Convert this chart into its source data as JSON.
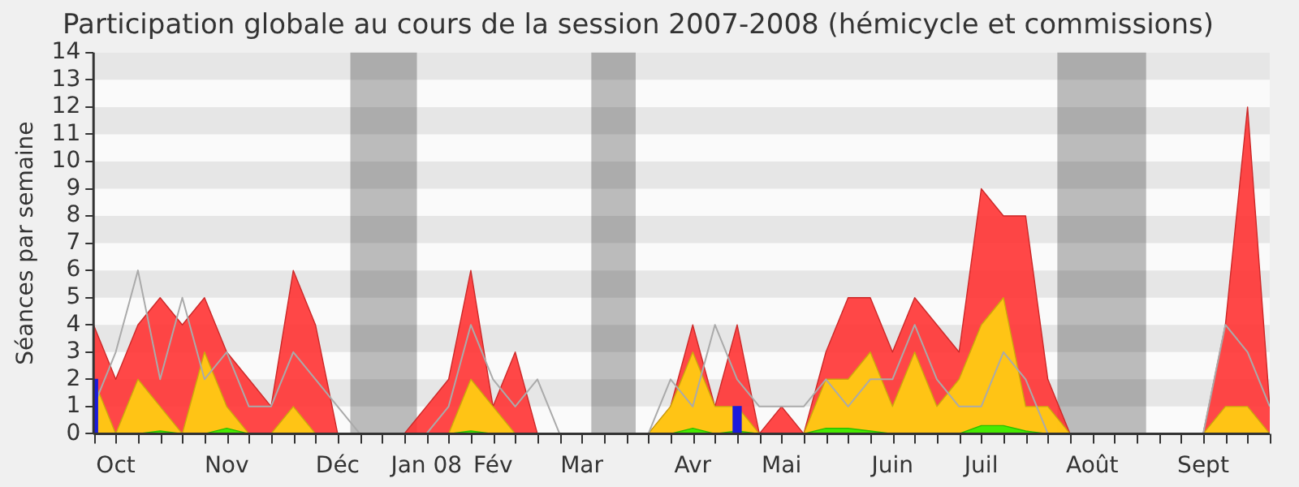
{
  "chart_data": {
    "type": "area",
    "title": "Participation globale au cours de la session 2007-2008 (hémicycle et commissions)",
    "ylabel": "Séances par semaine",
    "x": [
      "2007-10-01",
      "2007-10-08",
      "2007-10-15",
      "2007-10-22",
      "2007-10-29",
      "2007-11-05",
      "2007-11-12",
      "2007-11-19",
      "2007-11-26",
      "2007-12-03",
      "2007-12-10",
      "2007-12-17",
      "2007-12-24",
      "2007-12-31",
      "2008-01-07",
      "2008-01-14",
      "2008-01-21",
      "2008-01-28",
      "2008-02-04",
      "2008-02-11",
      "2008-02-18",
      "2008-02-25",
      "2008-03-03",
      "2008-03-10",
      "2008-03-17",
      "2008-03-24",
      "2008-03-31",
      "2008-04-07",
      "2008-04-14",
      "2008-04-21",
      "2008-04-28",
      "2008-05-05",
      "2008-05-12",
      "2008-05-19",
      "2008-05-26",
      "2008-06-02",
      "2008-06-09",
      "2008-06-16",
      "2008-06-23",
      "2008-06-30",
      "2008-07-07",
      "2008-07-14",
      "2008-07-21",
      "2008-07-28",
      "2008-08-04",
      "2008-08-11",
      "2008-08-18",
      "2008-08-25",
      "2008-09-01",
      "2008-09-08",
      "2008-09-15",
      "2008-09-22",
      "2008-09-29",
      "2008-10-06"
    ],
    "series": [
      {
        "color": "#ff3333",
        "values": [
          4,
          2,
          4,
          5,
          4,
          5,
          3,
          2,
          1,
          6,
          4,
          0,
          0,
          0,
          0,
          1,
          2,
          6,
          1,
          3,
          0,
          0,
          0,
          0,
          0,
          0,
          1,
          4,
          1,
          4,
          0,
          1,
          0,
          3,
          5,
          5,
          3,
          5,
          4,
          3,
          9,
          8,
          8,
          2,
          0,
          0,
          0,
          0,
          0,
          0,
          0,
          4,
          12,
          1
        ]
      },
      {
        "color": "#ffd20f",
        "values": [
          2,
          0,
          2,
          1,
          0,
          3,
          1,
          0,
          0,
          1,
          0,
          0,
          0,
          0,
          0,
          0,
          0,
          2,
          1,
          0,
          0,
          0,
          0,
          0,
          0,
          0,
          1,
          3,
          1,
          1,
          0,
          0,
          0,
          2,
          2,
          3,
          1,
          3,
          1,
          2,
          4,
          5,
          1,
          1,
          0,
          0,
          0,
          0,
          0,
          0,
          0,
          1,
          1,
          0
        ]
      },
      {
        "color": "#33ee00",
        "values": [
          0,
          0,
          0,
          0.1,
          0,
          0,
          0.2,
          0,
          0,
          0,
          0,
          0,
          0,
          0,
          0,
          0,
          0,
          0.1,
          0,
          0,
          0,
          0,
          0,
          0,
          0,
          0,
          0,
          0.2,
          0,
          0.1,
          0,
          0,
          0,
          0.2,
          0.2,
          0.1,
          0,
          0,
          0,
          0,
          0.3,
          0.3,
          0.1,
          0,
          0,
          0,
          0,
          0,
          0,
          0,
          0,
          0,
          0,
          0
        ]
      },
      {
        "type": "line",
        "color": "#aaaaaa",
        "values": [
          1,
          3,
          6,
          2,
          5,
          2,
          3,
          1,
          1,
          3,
          2,
          1,
          0,
          0,
          0,
          0,
          1,
          4,
          2,
          1,
          2,
          0,
          0,
          0,
          0,
          0,
          2,
          1,
          4,
          2,
          1,
          1,
          1,
          2,
          1,
          2,
          2,
          4,
          2,
          1,
          1,
          3,
          2,
          0,
          0,
          0,
          0,
          0,
          0,
          0,
          0,
          4,
          3,
          1
        ]
      },
      {
        "type": "bar",
        "color": "#1a1adb",
        "values": [
          2,
          null,
          null,
          null,
          null,
          null,
          null,
          null,
          null,
          null,
          null,
          null,
          null,
          null,
          null,
          null,
          null,
          null,
          null,
          null,
          null,
          null,
          null,
          null,
          null,
          null,
          null,
          null,
          null,
          1,
          null,
          null,
          null,
          null,
          null,
          null,
          null,
          null,
          null,
          null,
          null,
          null,
          null,
          null,
          null,
          null,
          null,
          null,
          null,
          null,
          null,
          null,
          null,
          null
        ]
      }
    ],
    "xlim": [
      "2007-10-01",
      "2008-10-06"
    ],
    "xticks": [
      {
        "value": "2007-10-01",
        "label": null
      },
      {
        "value": "2007-10-08",
        "label": "Oct"
      },
      {
        "value": "2007-10-15",
        "label": null
      },
      {
        "value": "2007-10-22",
        "label": null
      },
      {
        "value": "2007-10-29",
        "label": null
      },
      {
        "value": "2007-11-05",
        "label": null
      },
      {
        "value": "2007-11-12",
        "label": "Nov"
      },
      {
        "value": "2007-11-19",
        "label": null
      },
      {
        "value": "2007-11-26",
        "label": null
      },
      {
        "value": "2007-12-03",
        "label": null
      },
      {
        "value": "2007-12-10",
        "label": null
      },
      {
        "value": "2007-12-17",
        "label": "Déc"
      },
      {
        "value": "2007-12-24",
        "label": null
      },
      {
        "value": "2007-12-31",
        "label": null
      },
      {
        "value": "2008-01-07",
        "label": null
      },
      {
        "value": "2008-01-14",
        "label": "Jan 08"
      },
      {
        "value": "2008-01-21",
        "label": null
      },
      {
        "value": "2008-01-28",
        "label": null
      },
      {
        "value": "2008-02-04",
        "label": "Fév"
      },
      {
        "value": "2008-02-11",
        "label": null
      },
      {
        "value": "2008-02-18",
        "label": null
      },
      {
        "value": "2008-02-25",
        "label": null
      },
      {
        "value": "2008-03-03",
        "label": "Mar"
      },
      {
        "value": "2008-03-10",
        "label": null
      },
      {
        "value": "2008-03-17",
        "label": null
      },
      {
        "value": "2008-03-24",
        "label": null
      },
      {
        "value": "2008-03-31",
        "label": null
      },
      {
        "value": "2008-04-07",
        "label": "Avr"
      },
      {
        "value": "2008-04-14",
        "label": null
      },
      {
        "value": "2008-04-21",
        "label": null
      },
      {
        "value": "2008-04-28",
        "label": null
      },
      {
        "value": "2008-05-05",
        "label": "Mai"
      },
      {
        "value": "2008-05-12",
        "label": null
      },
      {
        "value": "2008-05-19",
        "label": null
      },
      {
        "value": "2008-05-26",
        "label": null
      },
      {
        "value": "2008-06-02",
        "label": null
      },
      {
        "value": "2008-06-09",
        "label": "Juin"
      },
      {
        "value": "2008-06-16",
        "label": null
      },
      {
        "value": "2008-06-23",
        "label": null
      },
      {
        "value": "2008-06-30",
        "label": null
      },
      {
        "value": "2008-07-07",
        "label": "Juil"
      },
      {
        "value": "2008-07-14",
        "label": null
      },
      {
        "value": "2008-07-21",
        "label": null
      },
      {
        "value": "2008-07-28",
        "label": null
      },
      {
        "value": "2008-08-04",
        "label": null
      },
      {
        "value": "2008-08-11",
        "label": "Août"
      },
      {
        "value": "2008-08-18",
        "label": null
      },
      {
        "value": "2008-08-25",
        "label": null
      },
      {
        "value": "2008-09-01",
        "label": null
      },
      {
        "value": "2008-09-08",
        "label": null
      },
      {
        "value": "2008-09-15",
        "label": "Sept"
      },
      {
        "value": "2008-09-22",
        "label": null
      },
      {
        "value": "2008-09-29",
        "label": null
      },
      {
        "value": "2008-10-06",
        "label": null
      }
    ],
    "ylim": [
      0,
      14
    ],
    "yticks": [
      0,
      1,
      2,
      3,
      4,
      5,
      6,
      7,
      8,
      9,
      10,
      11,
      12,
      13,
      14
    ],
    "bands": [
      {
        "axis": "y",
        "from": 1,
        "to": 2,
        "color": "#e6e6e6"
      },
      {
        "axis": "y",
        "from": 3,
        "to": 4,
        "color": "#e6e6e6"
      },
      {
        "axis": "y",
        "from": 5,
        "to": 6,
        "color": "#e6e6e6"
      },
      {
        "axis": "y",
        "from": 7,
        "to": 8,
        "color": "#e6e6e6"
      },
      {
        "axis": "y",
        "from": 9,
        "to": 10,
        "color": "#e6e6e6"
      },
      {
        "axis": "y",
        "from": 11,
        "to": 12,
        "color": "#e6e6e6"
      },
      {
        "axis": "y",
        "from": 13,
        "to": 14,
        "color": "#e6e6e6"
      },
      {
        "axis": "x",
        "from": "2007-12-21",
        "to": "2008-01-11"
      },
      {
        "axis": "x",
        "from": "2008-03-06",
        "to": "2008-03-20"
      },
      {
        "axis": "x",
        "from": "2008-07-31",
        "to": "2008-08-28"
      }
    ],
    "legend": false
  }
}
